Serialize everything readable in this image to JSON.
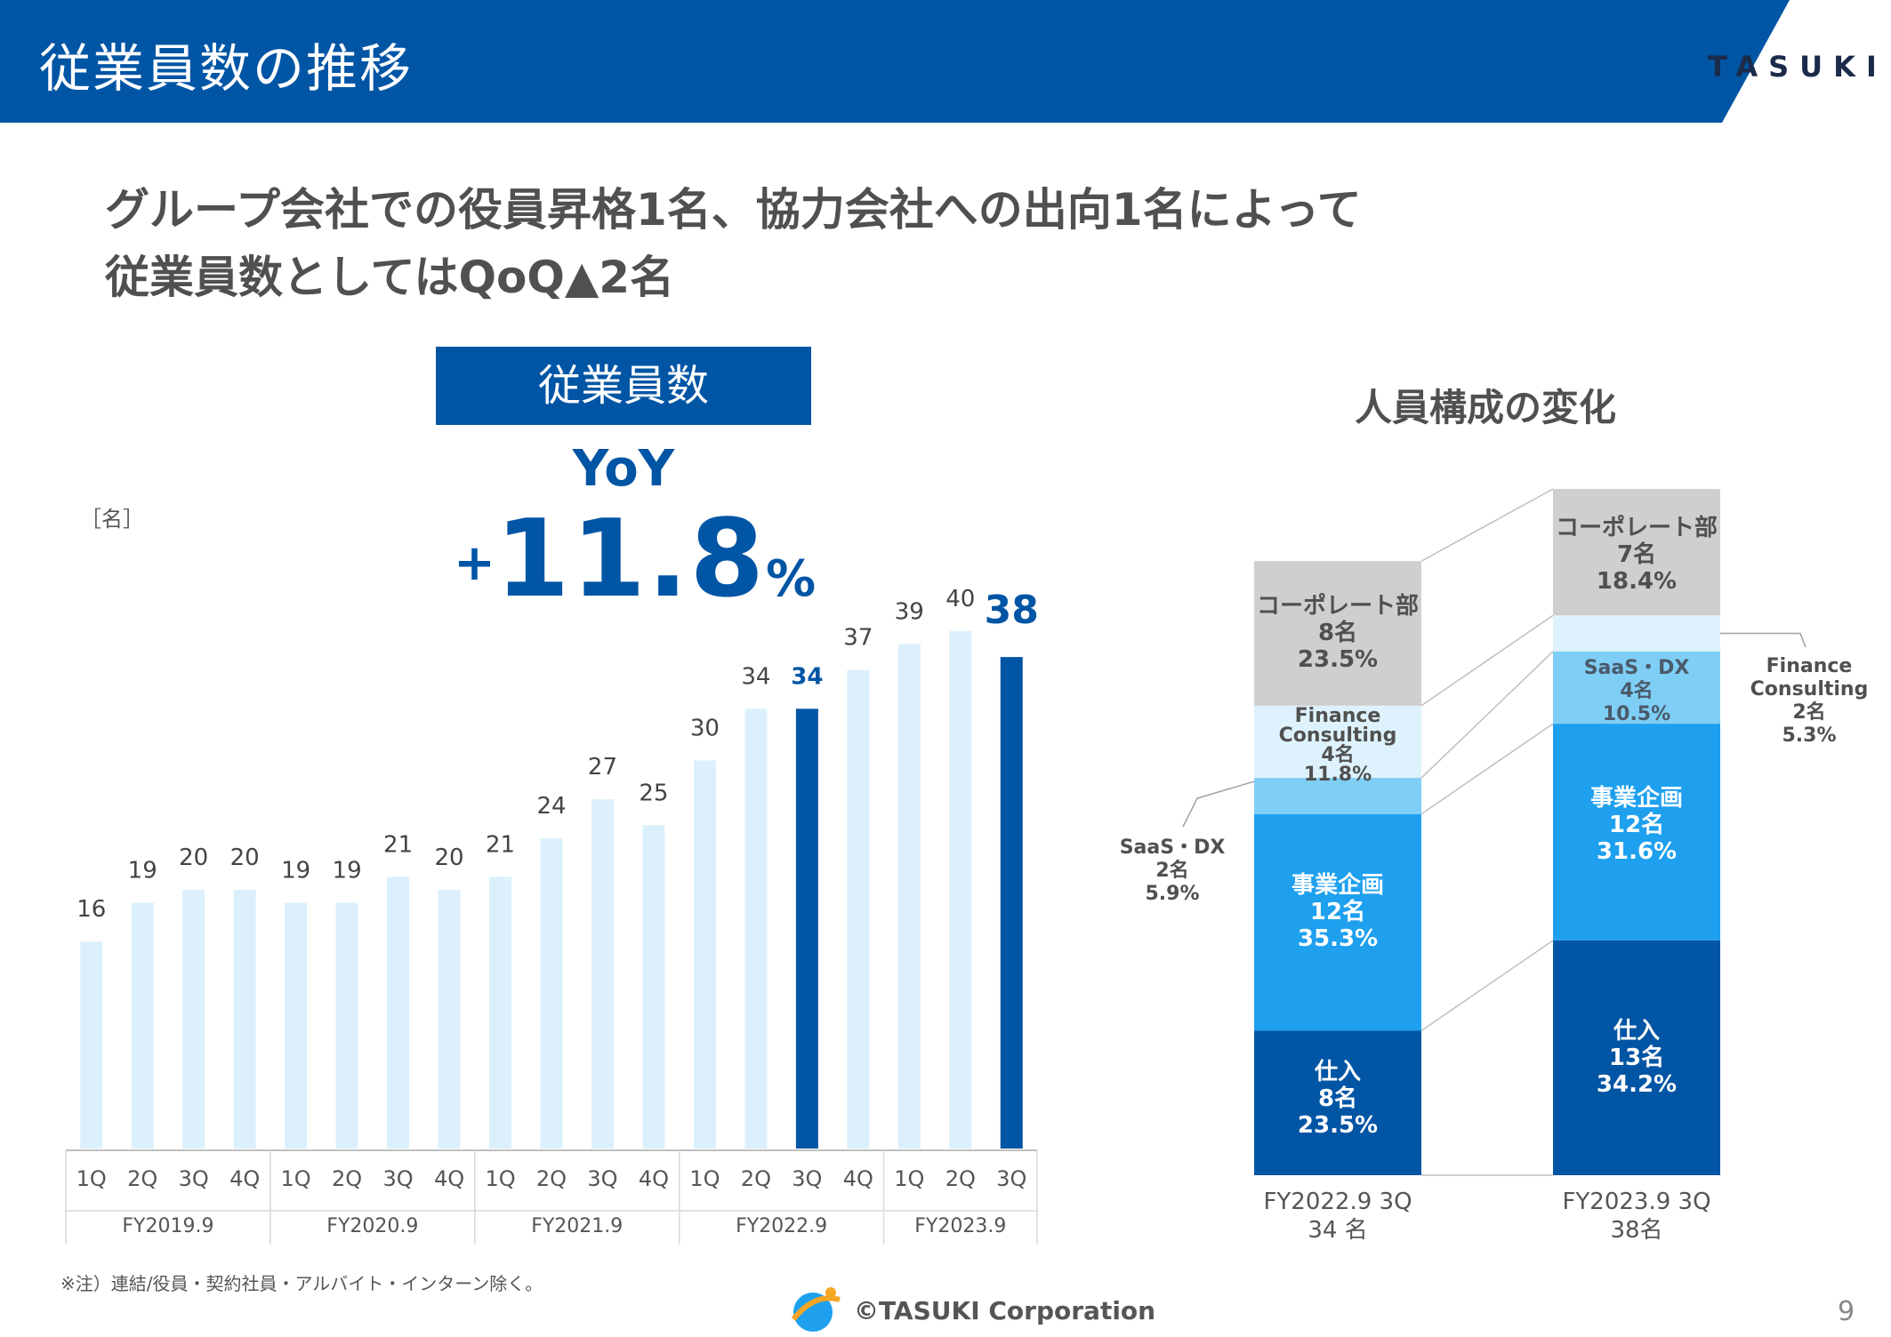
{
  "header": {
    "title": "従業員数の推移",
    "logo_text": "TASUKI",
    "band_color": "#0055a5"
  },
  "headline": {
    "line1": "グループ会社での役員昇格1名、協力会社への出向1名によって",
    "line2": "従業員数としてはQoQ▲2名"
  },
  "left_panel": {
    "box_label": "従業員数",
    "yoy_label": "YoY",
    "yoy_sign": "+",
    "yoy_number": "11.8",
    "yoy_unit": "%",
    "unit_label": "［名］"
  },
  "right_panel": {
    "title": "人員構成の変化"
  },
  "footer": {
    "note": "※注）連結/役員・契約社員・アルバイト・インターン除く。",
    "copyright": "©TASUKI Corporation",
    "page_number": "9"
  },
  "colors": {
    "light_bar": "#dbf0fc",
    "highlight_bar": "#0055a5",
    "corporate": "#d0cece",
    "finance": "#ddf2fc",
    "saas": "#7fcef5",
    "planning": "#1ea0ef",
    "purchasing": "#0055a5"
  },
  "chart_data": [
    {
      "type": "bar",
      "categories": [
        "1Q",
        "2Q",
        "3Q",
        "4Q",
        "1Q",
        "2Q",
        "3Q",
        "4Q",
        "1Q",
        "2Q",
        "3Q",
        "4Q",
        "1Q",
        "2Q",
        "3Q",
        "4Q",
        "1Q",
        "2Q",
        "3Q"
      ],
      "groups": [
        {
          "label": "FY2019.9",
          "count": 4
        },
        {
          "label": "FY2020.9",
          "count": 4
        },
        {
          "label": "FY2021.9",
          "count": 4
        },
        {
          "label": "FY2022.9",
          "count": 4
        },
        {
          "label": "FY2023.9",
          "count": 3
        }
      ],
      "values": [
        16,
        19,
        20,
        20,
        19,
        19,
        21,
        20,
        21,
        24,
        27,
        25,
        30,
        34,
        34,
        37,
        39,
        40,
        38
      ],
      "data_labels": [
        "16",
        "19",
        "20",
        "20",
        "19",
        "19",
        "21",
        "20",
        "21",
        "24",
        "27",
        "25",
        "30",
        "34",
        "34",
        "37",
        "39",
        "40",
        "38"
      ],
      "highlight_indices": [
        14,
        18
      ],
      "ylim": [
        0,
        42
      ],
      "ylabel": "［名］",
      "grid": false
    },
    {
      "type": "bar",
      "stacked": true,
      "categories": [
        "FY2022.9 3Q",
        "FY2023.9 3Q"
      ],
      "totals_labels": [
        "34 名",
        "38名"
      ],
      "series": [
        {
          "name": "仕入",
          "color_key": "purchasing",
          "values": [
            8,
            13
          ],
          "labels": [
            [
              "仕入",
              "8名",
              "23.5%"
            ],
            [
              "仕入",
              "13名",
              "34.2%"
            ]
          ],
          "label_color": "#ffffff"
        },
        {
          "name": "事業企画",
          "color_key": "planning",
          "values": [
            12,
            12
          ],
          "labels": [
            [
              "事業企画",
              "12名",
              "35.3%"
            ],
            [
              "事業企画",
              "12名",
              "31.6%"
            ]
          ],
          "label_color": "#ffffff"
        },
        {
          "name": "SaaS・DX",
          "color_key": "saas",
          "values": [
            2,
            4
          ],
          "labels": [
            [
              "SaaS・DX",
              "2名",
              "5.9%"
            ],
            [
              "SaaS・DX",
              "4名",
              "10.5%"
            ]
          ],
          "label_color": "#4a5a6a"
        },
        {
          "name": "Finance Consulting",
          "color_key": "finance",
          "values": [
            4,
            2
          ],
          "labels": [
            [
              "Finance",
              "Consulting",
              "4名",
              "11.8%"
            ],
            [
              "Finance",
              "Consulting",
              "2名",
              "5.3%"
            ]
          ],
          "label_color": "#505050"
        },
        {
          "name": "コーポレート部",
          "color_key": "corporate",
          "values": [
            8,
            7
          ],
          "labels": [
            [
              "コーポレート部",
              "8名",
              "23.5%"
            ],
            [
              "コーポレート部",
              "7名",
              "18.4%"
            ]
          ],
          "label_color": "#505050"
        }
      ],
      "ylim": [
        0,
        38
      ]
    }
  ]
}
